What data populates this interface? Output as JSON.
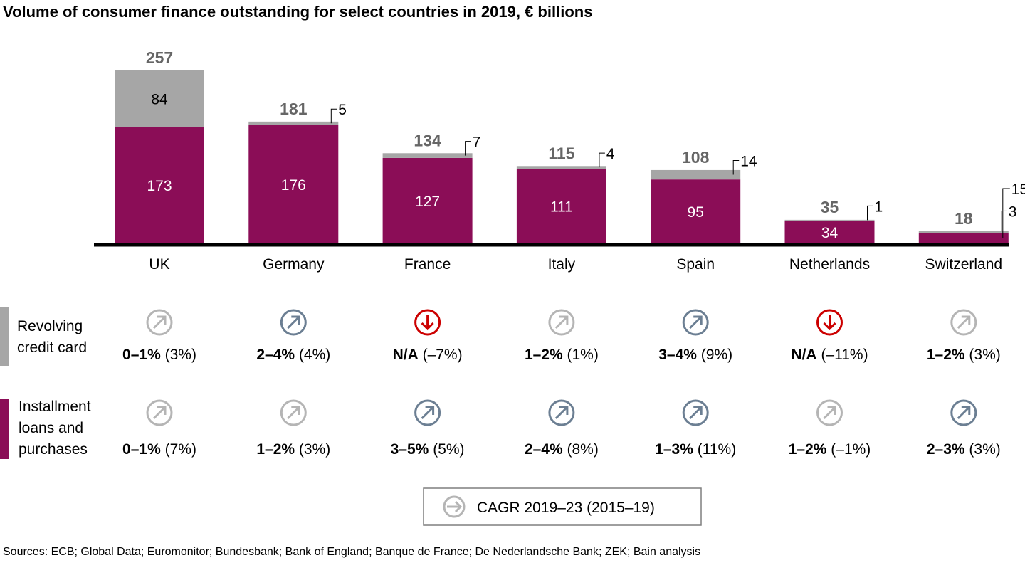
{
  "chart_data": {
    "type": "bar",
    "stacked": true,
    "title": "Volume of consumer finance outstanding for select countries in 2019, € billions",
    "categories": [
      "UK",
      "Germany",
      "France",
      "Italy",
      "Spain",
      "Netherlands",
      "Switzerland"
    ],
    "totals": [
      "257",
      "181",
      "134",
      "115",
      "108",
      "35",
      "18"
    ],
    "series": [
      {
        "name": "Installment loans and purchases",
        "legend_lines": [
          "Installment",
          "loans and",
          "purchases"
        ],
        "color": "#8b0d57",
        "values": [
          173,
          176,
          127,
          111,
          95,
          34,
          15
        ]
      },
      {
        "name": "Revolving credit card",
        "legend_lines": [
          "Revolving",
          "credit card"
        ],
        "color": "#a6a6a6",
        "values": [
          84,
          5,
          7,
          4,
          14,
          1,
          3
        ]
      }
    ],
    "ylim": [
      0,
      257
    ],
    "grid": false
  },
  "cagr": {
    "revolving": [
      {
        "bold": "0–1%",
        "paren": "(3%)",
        "icon": "up-light"
      },
      {
        "bold": "2–4%",
        "paren": "(4%)",
        "icon": "up-dark"
      },
      {
        "bold": "N/A",
        "paren": "(–7%)",
        "icon": "down-red"
      },
      {
        "bold": "1–2%",
        "paren": "(1%)",
        "icon": "up-light"
      },
      {
        "bold": "3–4%",
        "paren": "(9%)",
        "icon": "up-dark"
      },
      {
        "bold": "N/A",
        "paren": "(–11%)",
        "icon": "down-red"
      },
      {
        "bold": "1–2%",
        "paren": "(3%)",
        "icon": "up-light"
      }
    ],
    "installment": [
      {
        "bold": "0–1%",
        "paren": "(7%)",
        "icon": "up-light"
      },
      {
        "bold": "1–2%",
        "paren": "(3%)",
        "icon": "up-light"
      },
      {
        "bold": "3–5%",
        "paren": "(5%)",
        "icon": "up-dark"
      },
      {
        "bold": "2–4%",
        "paren": "(8%)",
        "icon": "up-dark"
      },
      {
        "bold": "1–3%",
        "paren": "(11%)",
        "icon": "up-dark"
      },
      {
        "bold": "1–2%",
        "paren": "(–1%)",
        "icon": "up-light"
      },
      {
        "bold": "2–3%",
        "paren": "(3%)",
        "icon": "up-dark"
      }
    ],
    "icon_colors": {
      "up-light": "#b5b5b5",
      "up-dark": "#6c7f93",
      "down-red": "#cc0000"
    }
  },
  "legend": {
    "label": "CAGR 2019–23 (2015–19)",
    "icon": "arrow-right-circle-icon"
  },
  "sources": "Sources: ECB; Global Data; Euromonitor; Bundesbank; Bank of England; Banque de France; De Nederlandsche Bank; ZEK; Bain analysis"
}
